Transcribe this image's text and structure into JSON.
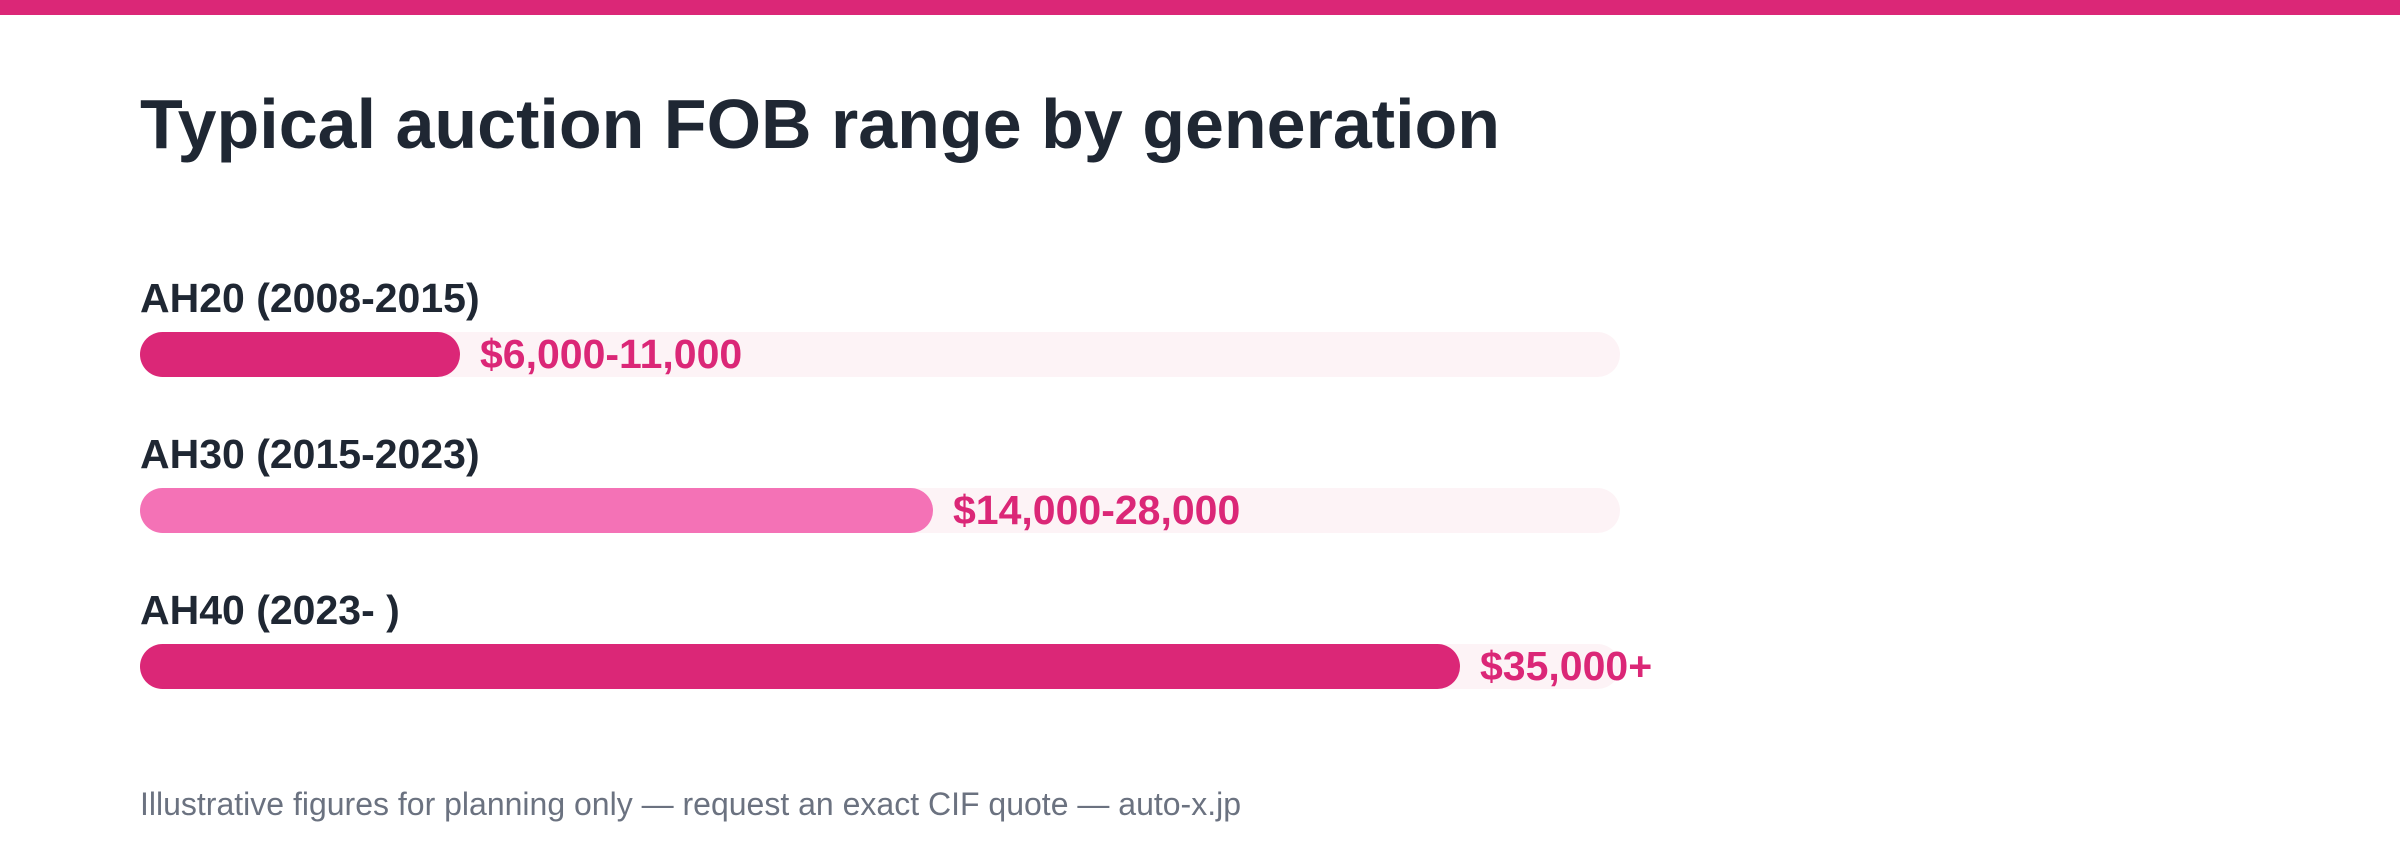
{
  "colors": {
    "accent": "#db2777",
    "accent_light": "#f472b6",
    "track": "#fdf3f6",
    "text_dark": "#1f2733",
    "text_muted": "#6b7280"
  },
  "chart_data": {
    "type": "bar",
    "orientation": "horizontal",
    "title": "Typical auction FOB range by generation",
    "categories": [
      "AH20 (2008-2015)",
      "AH30 (2015-2023)",
      "AH40 (2023- )"
    ],
    "series": [
      {
        "ranges": [
          [
            6000,
            11000
          ],
          [
            14000,
            28000
          ],
          [
            35000,
            null
          ]
        ],
        "data_labels": [
          "$6,000-11,000",
          "$14,000-28,000",
          "$35,000+"
        ],
        "fill_fraction": [
          0.216,
          0.536,
          0.892
        ],
        "bar_colors": [
          "#db2777",
          "#f472b6",
          "#db2777"
        ]
      }
    ],
    "grid": false,
    "legend": "none"
  },
  "footnote": "Illustrative figures for planning only — request an exact CIF quote — auto-x.jp"
}
